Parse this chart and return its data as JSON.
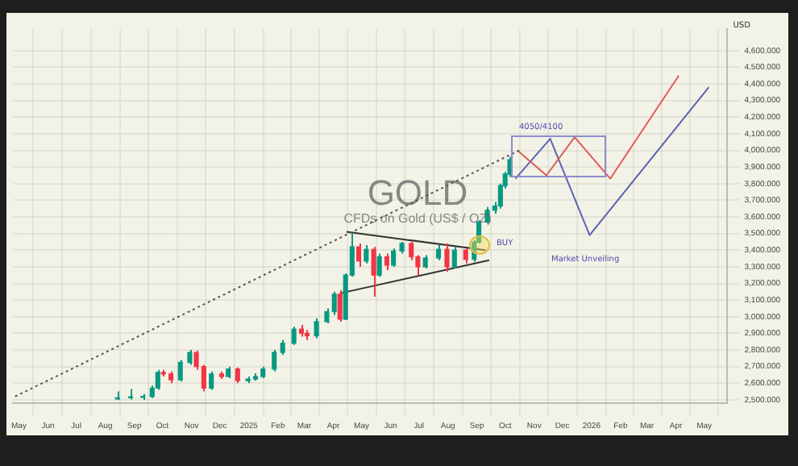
{
  "chart_data": {
    "type": "candlestick",
    "title": "GOLD",
    "subtitle": "CFDs on Gold (US$ / OZ)",
    "ylabel": "USD",
    "x": [
      "2024-08-14",
      "2024-08-28",
      "2024-09-10",
      "2024-09-20",
      "2024-09-26",
      "2024-10-02",
      "2024-10-10",
      "2024-10-20",
      "2024-10-30",
      "2024-11-06",
      "2024-11-14",
      "2024-11-22",
      "2024-12-03",
      "2024-12-10",
      "2024-12-20",
      "2024-12-31",
      "2025-01-08",
      "2025-01-16",
      "2025-01-28",
      "2025-02-06",
      "2025-02-18",
      "2025-02-26",
      "2025-03-04",
      "2025-03-14",
      "2025-03-25",
      "2025-04-02",
      "2025-04-08",
      "2025-04-14",
      "2025-04-21",
      "2025-04-28",
      "2025-05-06",
      "2025-05-14",
      "2025-05-20",
      "2025-05-28",
      "2025-06-04",
      "2025-06-13",
      "2025-06-23",
      "2025-06-30",
      "2025-07-08",
      "2025-07-22",
      "2025-07-31",
      "2025-08-08",
      "2025-08-20",
      "2025-08-29",
      "2025-09-03",
      "2025-09-12",
      "2025-09-20",
      "2025-09-26",
      "2025-10-01",
      "2025-10-06"
    ],
    "ohlc": [
      [
        2505,
        2550,
        2500,
        2512
      ],
      [
        2512,
        2565,
        2502,
        2518
      ],
      [
        2515,
        2535,
        2500,
        2520
      ],
      [
        2520,
        2585,
        2510,
        2570
      ],
      [
        2570,
        2680,
        2560,
        2665
      ],
      [
        2665,
        2680,
        2640,
        2655
      ],
      [
        2655,
        2670,
        2600,
        2620
      ],
      [
        2620,
        2740,
        2610,
        2725
      ],
      [
        2725,
        2800,
        2710,
        2785
      ],
      [
        2785,
        2795,
        2680,
        2700
      ],
      [
        2700,
        2710,
        2550,
        2570
      ],
      [
        2570,
        2670,
        2560,
        2655
      ],
      [
        2655,
        2670,
        2625,
        2640
      ],
      [
        2640,
        2700,
        2630,
        2685
      ],
      [
        2685,
        2695,
        2600,
        2615
      ],
      [
        2615,
        2640,
        2600,
        2625
      ],
      [
        2625,
        2660,
        2615,
        2640
      ],
      [
        2640,
        2700,
        2630,
        2685
      ],
      [
        2685,
        2800,
        2670,
        2785
      ],
      [
        2785,
        2860,
        2770,
        2840
      ],
      [
        2840,
        2940,
        2830,
        2925
      ],
      [
        2925,
        2950,
        2880,
        2900
      ],
      [
        2900,
        2920,
        2860,
        2885
      ],
      [
        2885,
        2990,
        2870,
        2970
      ],
      [
        2970,
        3050,
        2960,
        3030
      ],
      [
        3030,
        3150,
        3010,
        3135
      ],
      [
        3135,
        3160,
        2970,
        2985
      ],
      [
        2985,
        3260,
        2980,
        3250
      ],
      [
        3250,
        3500,
        3240,
        3420
      ],
      [
        3420,
        3440,
        3300,
        3335
      ],
      [
        3335,
        3430,
        3320,
        3405
      ],
      [
        3405,
        3420,
        3120,
        3250
      ],
      [
        3250,
        3380,
        3240,
        3360
      ],
      [
        3360,
        3380,
        3280,
        3310
      ],
      [
        3310,
        3410,
        3300,
        3395
      ],
      [
        3395,
        3450,
        3380,
        3440
      ],
      [
        3440,
        3450,
        3340,
        3360
      ],
      [
        3360,
        3370,
        3250,
        3300
      ],
      [
        3300,
        3370,
        3290,
        3353
      ],
      [
        3353,
        3430,
        3340,
        3405
      ],
      [
        3405,
        3440,
        3270,
        3300
      ],
      [
        3300,
        3420,
        3290,
        3400
      ],
      [
        3400,
        3410,
        3320,
        3345
      ],
      [
        3345,
        3460,
        3330,
        3448
      ],
      [
        3448,
        3580,
        3440,
        3570
      ],
      [
        3570,
        3660,
        3560,
        3640
      ],
      [
        3640,
        3690,
        3620,
        3666
      ],
      [
        3666,
        3800,
        3650,
        3788
      ],
      [
        3788,
        3870,
        3770,
        3857
      ],
      [
        3857,
        3960,
        3840,
        3944
      ]
    ],
    "series": [
      {
        "type": "line",
        "x": [
          "2024-04-27",
          "2025-10-16"
        ],
        "values": [
          2520,
          4000
        ],
        "color": "#555555",
        "line_style": "dotted"
      },
      {
        "type": "line",
        "x": [
          "2025-04-15",
          "2025-09-10"
        ],
        "values": [
          3510,
          3400
        ],
        "color": "#333333",
        "line_style": "solid"
      },
      {
        "type": "line",
        "x": [
          "2025-04-08",
          "2025-09-14"
        ],
        "values": [
          3140,
          3340
        ],
        "color": "#333333",
        "line_style": "solid"
      },
      {
        "type": "line",
        "x": [
          "2025-10-14",
          "2025-11-14",
          "2025-12-14",
          "2026-01-21",
          "2026-04-04"
        ],
        "values": [
          4000,
          3850,
          4080,
          3830,
          4450
        ],
        "color": "#e05a5a",
        "line_style": "solid"
      },
      {
        "type": "line",
        "x": [
          "2025-10-12",
          "2025-11-18",
          "2025-12-30",
          "2026-05-06"
        ],
        "values": [
          3830,
          4070,
          3490,
          4380
        ],
        "color": "#5a64b4",
        "line_style": "solid"
      }
    ],
    "annotations": [
      "4050/4100",
      "BUY",
      "Market Unveiling"
    ],
    "xlim": [
      "2024-04-25",
      "2026-05-25"
    ],
    "xticks": [
      {
        "value": "2024-05-01",
        "label": "May"
      },
      {
        "value": "2024-06-01",
        "label": "Jun"
      },
      {
        "value": "2024-07-01",
        "label": "Jul"
      },
      {
        "value": "2024-08-01",
        "label": "Aug"
      },
      {
        "value": "2024-09-01",
        "label": "Sep"
      },
      {
        "value": "2024-10-01",
        "label": "Oct"
      },
      {
        "value": "2024-11-01",
        "label": "Nov"
      },
      {
        "value": "2024-12-01",
        "label": "Dec"
      },
      {
        "value": "2025-01-01",
        "label": "2025"
      },
      {
        "value": "2025-02-01",
        "label": "Feb"
      },
      {
        "value": "2025-03-01",
        "label": "Mar"
      },
      {
        "value": "2025-04-01",
        "label": "Apr"
      },
      {
        "value": "2025-05-01",
        "label": "May"
      },
      {
        "value": "2025-06-01",
        "label": "Jun"
      },
      {
        "value": "2025-07-01",
        "label": "Jul"
      },
      {
        "value": "2025-08-01",
        "label": "Aug"
      },
      {
        "value": "2025-09-01",
        "label": "Sep"
      },
      {
        "value": "2025-10-01",
        "label": "Oct"
      },
      {
        "value": "2025-11-01",
        "label": "Nov"
      },
      {
        "value": "2025-12-01",
        "label": "Dec"
      },
      {
        "value": "2026-01-01",
        "label": "2026"
      },
      {
        "value": "2026-02-01",
        "label": "Feb"
      },
      {
        "value": "2026-03-01",
        "label": "Mar"
      },
      {
        "value": "2026-04-01",
        "label": "Apr"
      },
      {
        "value": "2026-05-01",
        "label": "May"
      }
    ],
    "ylim": [
      2480,
      4730
    ],
    "yticks": [
      {
        "value": 2500,
        "label": "2,500.000"
      },
      {
        "value": 2600,
        "label": "2,600.000"
      },
      {
        "value": 2700,
        "label": "2,700.000"
      },
      {
        "value": 2800,
        "label": "2,800.000"
      },
      {
        "value": 2900,
        "label": "2,900.000"
      },
      {
        "value": 3000,
        "label": "3,000.000"
      },
      {
        "value": 3100,
        "label": "3,100.000"
      },
      {
        "value": 3200,
        "label": "3,200.000"
      },
      {
        "value": 3300,
        "label": "3,300.000"
      },
      {
        "value": 3400,
        "label": "3,400.000"
      },
      {
        "value": 3500,
        "label": "3,500.000"
      },
      {
        "value": 3600,
        "label": "3,600.000"
      },
      {
        "value": 3700,
        "label": "3,700.000"
      },
      {
        "value": 3800,
        "label": "3,800.000"
      },
      {
        "value": 3900,
        "label": "3,900.000"
      },
      {
        "value": 4000,
        "label": "4,000.000"
      },
      {
        "value": 4100,
        "label": "4,100.000"
      },
      {
        "value": 4200,
        "label": "4,200.000"
      },
      {
        "value": 4300,
        "label": "4,300.000"
      },
      {
        "value": 4400,
        "label": "4,400.000"
      },
      {
        "value": 4500,
        "label": "4,500.000"
      },
      {
        "value": 4600,
        "label": "4,600.000"
      }
    ],
    "grid": true,
    "legend": false
  }
}
